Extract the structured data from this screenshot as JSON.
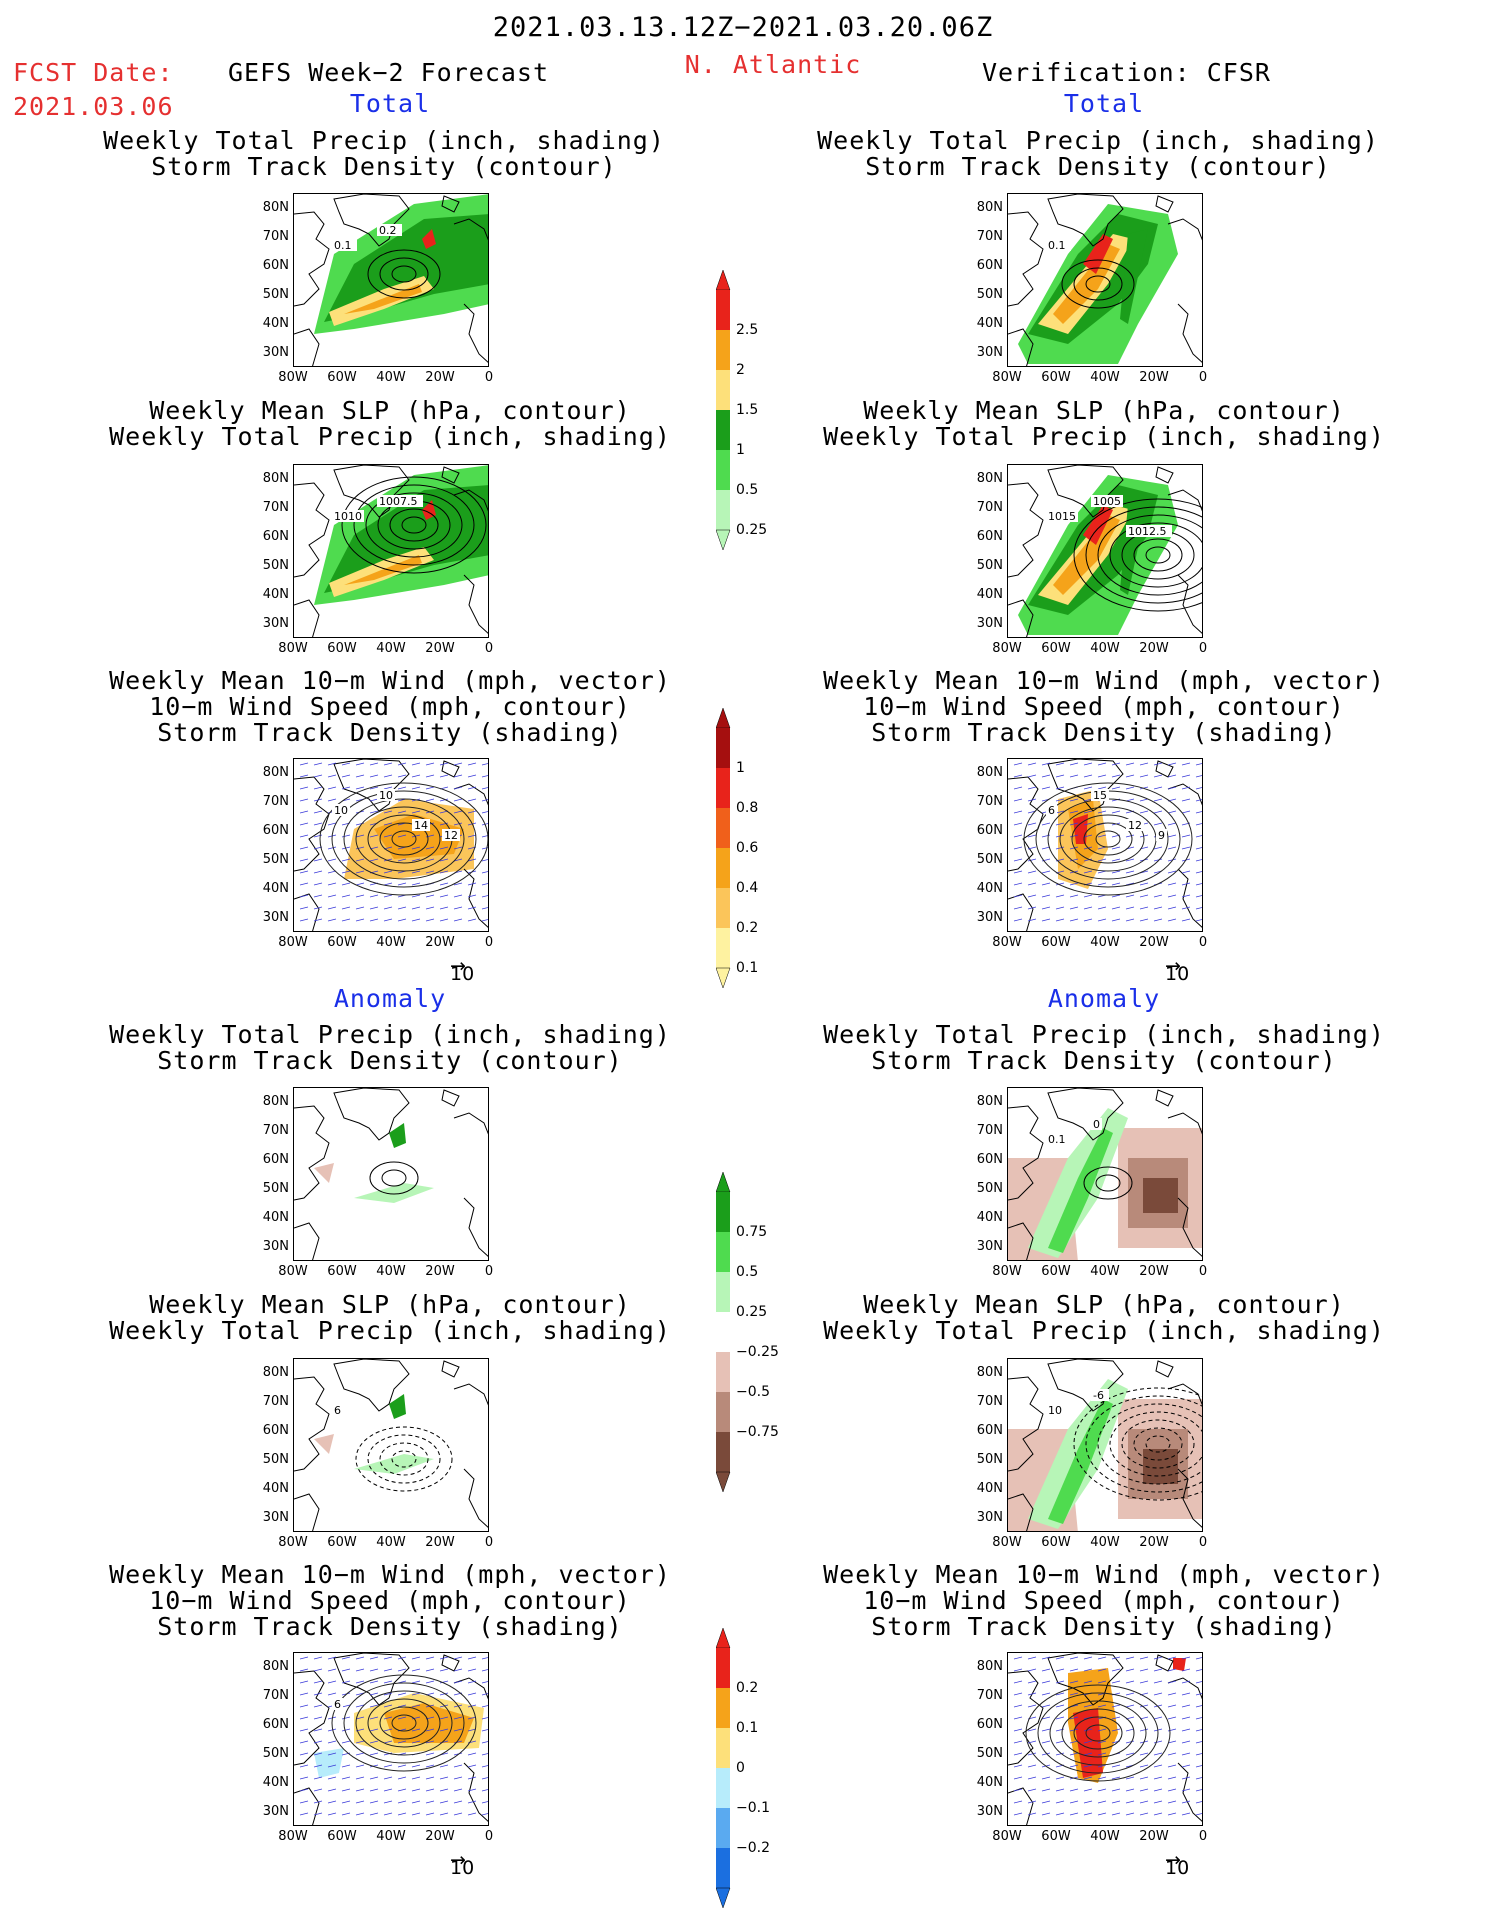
{
  "header": {
    "period": "2021.03.13.12Z−2021.03.20.06Z",
    "fcst_label": "FCST Date:",
    "fcst_date": "2021.03.06",
    "model_title": "GEFS Week−2 Forecast",
    "region": "N. Atlantic",
    "verification": "Verification: CFSR"
  },
  "sections": {
    "total": "Total",
    "anomaly": "Anomaly"
  },
  "panel_titles": {
    "precip_storm": [
      "Weekly Total Precip (inch, shading)",
      "Storm Track Density (contour)"
    ],
    "slp_precip": [
      "Weekly Mean SLP (hPa, contour)",
      "Weekly Total Precip (inch, shading)"
    ],
    "wind_storm": [
      "Weekly Mean 10−m Wind (mph, vector)",
      "10−m Wind Speed (mph, contour)",
      "Storm Track Density (shading)"
    ]
  },
  "axes": {
    "lat_ticks": [
      "80N",
      "70N",
      "60N",
      "50N",
      "40N",
      "30N"
    ],
    "lon_ticks": [
      "80W",
      "60W",
      "40W",
      "20W",
      "0"
    ]
  },
  "vector_ref": "10",
  "colorbars": {
    "precip_total": {
      "labels": [
        "2.5",
        "2",
        "1.5",
        "1",
        "0.5",
        "0.25"
      ],
      "colors": [
        "#e8231b",
        "#f5a31a",
        "#fde07a",
        "#1b9e1b",
        "#4fdb4f",
        "#b7f5b7"
      ]
    },
    "storm_total": {
      "labels": [
        "1",
        "0.8",
        "0.6",
        "0.4",
        "0.2",
        "0.1"
      ],
      "colors": [
        "#a50f0f",
        "#e8231b",
        "#f0601b",
        "#f5a31a",
        "#fbc55a",
        "#fef2a0"
      ]
    },
    "precip_anom": {
      "labels": [
        "0.75",
        "0.5",
        "0.25",
        "−0.25",
        "−0.5",
        "−0.75"
      ],
      "colors": [
        "#1b9e1b",
        "#4fdb4f",
        "#b7f5b7",
        "#ffffff",
        "#e6c1b6",
        "#b88a7a",
        "#7a4a3a"
      ]
    },
    "storm_anom": {
      "labels": [
        "0.2",
        "0.1",
        "0",
        "−0.1",
        "−0.2"
      ],
      "colors": [
        "#e8231b",
        "#f5a31a",
        "#fde07a",
        "#b7ecfb",
        "#5aaaf0",
        "#1b6fe0"
      ]
    }
  },
  "map_labels": {
    "l1": [
      "0.1",
      "0.2"
    ],
    "r1": [
      "0.1"
    ],
    "l2": [
      "1010",
      "1007.5"
    ],
    "r2": [
      "1015",
      "1005",
      "1012.5"
    ],
    "l3": [
      "10",
      "10",
      "14",
      "12"
    ],
    "r3": [
      "6",
      "15",
      "12",
      "9"
    ],
    "r4": [
      "0.1",
      "0"
    ],
    "l5": [
      "6"
    ],
    "r5": [
      "10",
      "-6"
    ],
    "l6": [
      "6"
    ]
  }
}
